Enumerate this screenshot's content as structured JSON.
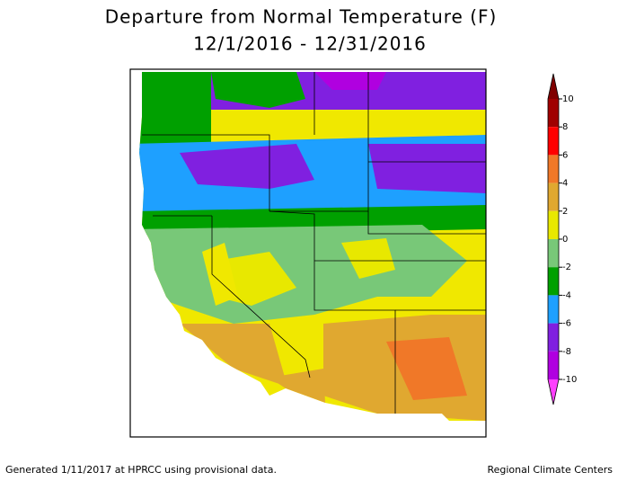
{
  "header": {
    "title": "Departure from Normal Temperature (F)",
    "subtitle": "12/1/2016 - 12/31/2016"
  },
  "legend": {
    "ticks": [
      10,
      8,
      6,
      4,
      2,
      0,
      -2,
      -4,
      -6,
      -8,
      -10
    ],
    "colors": [
      "#a00000",
      "#ff0000",
      "#f07828",
      "#e0a830",
      "#e8e800",
      "#78c878",
      "#00a000",
      "#1ea0ff",
      "#8020e0",
      "#b000e0"
    ],
    "top_color": "#800000",
    "bottom_color": "#ff40ff"
  },
  "footer": {
    "left": "Generated 1/11/2017 at HPRCC using provisional data.",
    "right": "Regional Climate Centers"
  }
}
